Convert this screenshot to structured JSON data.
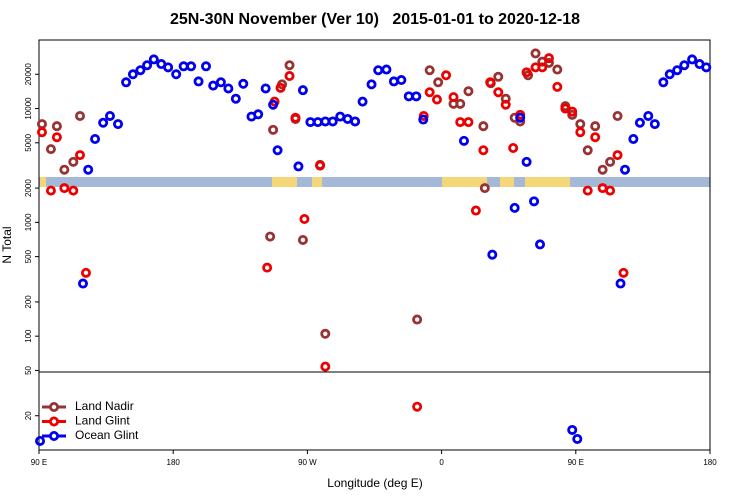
{
  "chart_data": {
    "type": "scatter",
    "title": "25N-30N November (Ver 10)   2015-01-01 to 2020-12-18",
    "x_label": "Longitude (deg E)",
    "y_label": "N Total",
    "xlim": [
      90,
      540
    ],
    "ylim": [
      10,
      40000
    ],
    "y_scale": "log",
    "legend": "bottom-left",
    "xticks": [
      {
        "value": 90,
        "label": "90 E"
      },
      {
        "value": 180,
        "label": "180"
      },
      {
        "value": 270,
        "label": "90 W"
      },
      {
        "value": 360,
        "label": "0"
      },
      {
        "value": 450,
        "label": "90 E"
      },
      {
        "value": 540,
        "label": "180"
      }
    ],
    "yticks": [
      20,
      50,
      100,
      200,
      500,
      1000,
      2000,
      5000,
      10000,
      20000
    ],
    "series": [
      {
        "name": "Land Nadir",
        "color": "#993333",
        "x": [
          92,
          98,
          102,
          107,
          113,
          117.5,
          245,
          247,
          253,
          258,
          262,
          267,
          278.5,
          282,
          343.6,
          352,
          357.7,
          368,
          372.5,
          378,
          388,
          389,
          393,
          398,
          403,
          409,
          412.7,
          418,
          423,
          427.5,
          432,
          437.6,
          443,
          447.6,
          453,
          458,
          463,
          468,
          473,
          478
        ],
        "values": [
          7300,
          4400,
          7000,
          2900,
          3400,
          8600,
          750,
          6500,
          16300,
          24000,
          8100,
          700,
          3200,
          105,
          140,
          21700,
          17000,
          11000,
          11000,
          14200,
          7000,
          2000,
          16700,
          19000,
          12200,
          8300,
          7700,
          19600,
          30500,
          25800,
          25200,
          22000,
          10500,
          8800,
          7300,
          4300,
          7000,
          2900,
          3400,
          8600
        ]
      },
      {
        "name": "Land Glint",
        "color": "#ee0000",
        "x": [
          92,
          98,
          102,
          107,
          113,
          117.5,
          121.5,
          243,
          248,
          252,
          258,
          262,
          268,
          278.5,
          282,
          343.6,
          348,
          352,
          356.9,
          363,
          368,
          372.5,
          378,
          383,
          388,
          392.6,
          398,
          403,
          408,
          412.7,
          417,
          423,
          427.5,
          432,
          437.6,
          443,
          447.6,
          453,
          458,
          463,
          468,
          473,
          478,
          482
        ],
        "values": [
          6200,
          1900,
          5600,
          2000,
          1900,
          3900,
          360,
          400,
          11500,
          15200,
          19300,
          8300,
          1070,
          3150,
          54,
          24,
          8600,
          13900,
          12000,
          19600,
          12600,
          7600,
          7600,
          1270,
          4300,
          17000,
          13900,
          10800,
          4500,
          8800,
          20800,
          23000,
          23000,
          27700,
          15500,
          10000,
          9400,
          6200,
          1900,
          5600,
          2000,
          1900,
          3900,
          360
        ]
      },
      {
        "name": "Ocean Glint",
        "color": "#0000ee",
        "x": [
          90.7,
          119.5,
          123,
          127.6,
          133,
          137.6,
          143,
          148.4,
          153,
          158,
          162.5,
          167,
          172,
          176.6,
          182,
          187,
          192,
          197,
          202,
          206.8,
          212,
          217,
          222,
          227,
          232.5,
          237,
          242,
          247,
          250,
          264,
          267,
          272,
          277,
          282,
          287,
          292,
          297,
          302,
          307,
          313,
          317.5,
          323,
          328,
          333,
          338,
          343,
          347.7,
          375,
          394,
          409,
          412.7,
          417,
          422,
          426,
          447.6,
          451,
          480,
          483,
          488.6,
          493,
          498.6,
          503,
          508.7,
          513,
          518,
          522.8,
          528,
          533,
          537.5
        ],
        "values": [
          12,
          290,
          2900,
          5400,
          7500,
          8600,
          7300,
          17000,
          20000,
          21700,
          24000,
          27000,
          24600,
          23000,
          20000,
          23500,
          23500,
          17300,
          23500,
          15900,
          17000,
          15000,
          12200,
          16500,
          8500,
          8900,
          15000,
          10800,
          4300,
          3100,
          14500,
          7600,
          7600,
          7700,
          7700,
          8500,
          8100,
          7700,
          11500,
          16300,
          21700,
          22000,
          17300,
          17800,
          12800,
          12800,
          8000,
          5200,
          520,
          1340,
          8300,
          3400,
          1530,
          640,
          15,
          12.5,
          290,
          2900,
          5400,
          7500,
          8600,
          7300,
          17000,
          20000,
          21700,
          24000,
          27000,
          24600,
          23000
        ]
      }
    ]
  }
}
